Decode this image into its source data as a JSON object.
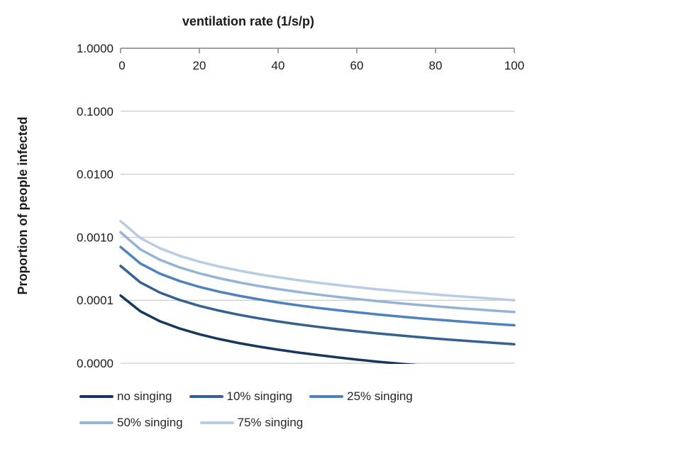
{
  "chart_data": {
    "type": "line",
    "title": "ventilation rate (1/s/p)",
    "xlabel": "ventilation rate (1/s/p)",
    "ylabel": "Proportion of people infected",
    "grid": true,
    "legend_position": "bottom",
    "x_axis": {
      "position": "top",
      "min": 0,
      "max": 100,
      "ticks": [
        0,
        20,
        40,
        60,
        80,
        100
      ],
      "tick_labels": [
        "0",
        "20",
        "40",
        "60",
        "80",
        "100"
      ]
    },
    "y_axis": {
      "scale": "log",
      "min": 1e-05,
      "max": 1.0,
      "tick_labels": [
        "1.0000",
        "0.1000",
        "0.0100",
        "0.0010",
        "0.0001",
        "0.0000"
      ]
    },
    "x": [
      0,
      5,
      10,
      15,
      20,
      25,
      30,
      35,
      40,
      45,
      50,
      55,
      60,
      65,
      70,
      75,
      80,
      85,
      90,
      95,
      100
    ],
    "series": [
      {
        "name": "no singing",
        "color": "#17375E",
        "values": [
          0.0001188,
          6.67e-05,
          4.63e-05,
          3.55e-05,
          2.88e-05,
          2.42e-05,
          2.09e-05,
          1.84e-05,
          1.64e-05,
          1.48e-05,
          1.35e-05,
          1.24e-05,
          1.14e-05,
          1.06e-05,
          9.95e-06,
          9.34e-06,
          8.8e-06,
          8.32e-06,
          7.88e-06,
          7.5e-06,
          7.14e-06
        ]
      },
      {
        "name": "10% singing",
        "color": "#366092",
        "values": [
          0.00035,
          0.0001917,
          0.000132,
          0.0001007,
          8.13e-05,
          6.83e-05,
          5.88e-05,
          5.16e-05,
          4.6e-05,
          4.15e-05,
          3.78e-05,
          3.47e-05,
          3.21e-05,
          2.98e-05,
          2.79e-05,
          2.62e-05,
          2.46e-05,
          2.33e-05,
          2.21e-05,
          2.1e-05,
          2e-05
        ]
      },
      {
        "name": "25% singing",
        "color": "#4F81BD",
        "values": [
          0.0007,
          0.0003834,
          0.000264,
          0.0002013,
          0.0001627,
          0.0001365,
          0.0001176,
          0.0001033,
          9.21e-05,
          8.3e-05,
          7.56e-05,
          6.94e-05,
          6.42e-05,
          5.97e-05,
          5.57e-05,
          5.23e-05,
          4.93e-05,
          4.66e-05,
          4.41e-05,
          4.2e-05,
          4e-05
        ]
      },
      {
        "name": "50% singing",
        "color": "#95B3D7",
        "values": [
          0.0012,
          0.0006411,
          0.0004369,
          0.0003314,
          0.0002669,
          0.0002235,
          0.0001922,
          0.0001686,
          0.0001501,
          0.0001353,
          0.0001232,
          0.000113,
          0.0001044,
          9.7e-05,
          9.06e-05,
          8.5e-05,
          8e-05,
          7.56e-05,
          7.17e-05,
          6.81e-05,
          6.49e-05
        ]
      },
      {
        "name": "75% singing",
        "color": "#B8CCE4",
        "values": [
          0.0018,
          0.0009725,
          0.0006667,
          0.0005072,
          0.0004093,
          0.000343,
          0.0002953,
          0.0002592,
          0.0002309,
          0.0002083,
          0.0001896,
          0.0001741,
          0.0001608,
          0.0001495,
          0.0001397,
          0.000131,
          0.0001234,
          0.0001166,
          0.0001105,
          0.0001051,
          0.0001001
        ]
      }
    ],
    "style": {
      "gridline_color": "#BFBFBF",
      "axis_line_color": "#808080",
      "line_width": 3.5
    }
  }
}
